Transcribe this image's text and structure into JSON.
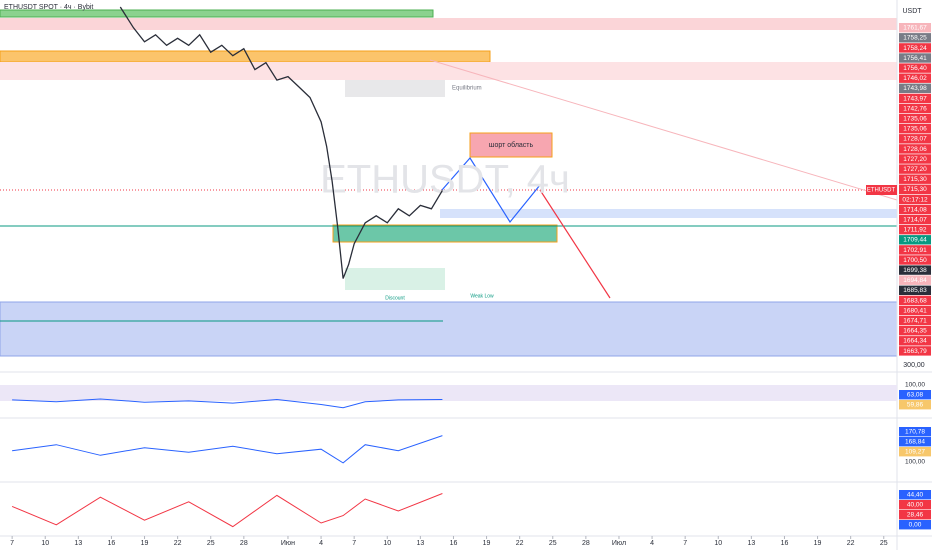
{
  "chart_data": {
    "type": "line",
    "title": "ETHUSDT SPOT · 4ч · Bybit",
    "watermark": "ETHUSDT, 4ч",
    "currency": "USDT",
    "color": "#2a2e39",
    "x": [
      9.8,
      11,
      12,
      13,
      14,
      15,
      16,
      17,
      18,
      19,
      20,
      21,
      22,
      23,
      24,
      25,
      26,
      27,
      28,
      28.5,
      29,
      29.5,
      30,
      30.5,
      31,
      32,
      33,
      34,
      35,
      36,
      37,
      38,
      39
    ],
    "values": [
      1768,
      1762,
      1758,
      1760,
      1757,
      1759,
      1757,
      1760,
      1755,
      1757,
      1754,
      1756,
      1750,
      1752,
      1747,
      1748,
      1745,
      1742,
      1735,
      1728,
      1718,
      1705,
      1690,
      1694,
      1700,
      1706,
      1708,
      1706,
      1710,
      1708,
      1711,
      1710,
      1715.3
    ],
    "xlim": [
      -1.1,
      80.2
    ],
    "ylim": [
      1666,
      1770
    ],
    "xticks": [
      {
        "value": 0,
        "label": "7"
      },
      {
        "value": 3,
        "label": "10"
      },
      {
        "value": 6,
        "label": "13"
      },
      {
        "value": 9,
        "label": "16"
      },
      {
        "value": 12,
        "label": "19"
      },
      {
        "value": 15,
        "label": "22"
      },
      {
        "value": 18,
        "label": "25"
      },
      {
        "value": 21,
        "label": "28"
      },
      {
        "value": 25,
        "label": "Июн"
      },
      {
        "value": 28,
        "label": "4"
      },
      {
        "value": 31,
        "label": "7"
      },
      {
        "value": 34,
        "label": "10"
      },
      {
        "value": 37,
        "label": "13"
      },
      {
        "value": 40,
        "label": "16"
      },
      {
        "value": 43,
        "label": "19"
      },
      {
        "value": 46,
        "label": "22"
      },
      {
        "value": 49,
        "label": "25"
      },
      {
        "value": 52,
        "label": "28"
      },
      {
        "value": 55,
        "label": "Июл"
      },
      {
        "value": 58,
        "label": "4"
      },
      {
        "value": 61,
        "label": "7"
      },
      {
        "value": 64,
        "label": "10"
      },
      {
        "value": 67,
        "label": "13"
      },
      {
        "value": 70,
        "label": "16"
      },
      {
        "value": 73,
        "label": "19"
      },
      {
        "value": 76,
        "label": "22"
      },
      {
        "value": 79,
        "label": "25"
      }
    ],
    "price_tags": [
      {
        "label": "1761,67",
        "color": "#f7b5bb"
      },
      {
        "label": "1758,25",
        "color": "#787b86"
      },
      {
        "label": "1758,24",
        "color": "#f23645"
      },
      {
        "label": "1756,41",
        "color": "#787b86"
      },
      {
        "label": "1756,40",
        "color": "#f23645"
      },
      {
        "label": "1746,02",
        "color": "#f23645"
      },
      {
        "label": "1743,98",
        "color": "#787b86"
      },
      {
        "label": "1743,97",
        "color": "#f23645"
      },
      {
        "label": "1742,76",
        "color": "#f23645"
      },
      {
        "label": "1735,06",
        "color": "#f23645"
      },
      {
        "label": "1735,06",
        "color": "#f23645"
      },
      {
        "label": "1728,07",
        "color": "#f23645"
      },
      {
        "label": "1728,06",
        "color": "#f23645"
      },
      {
        "label": "1727,20",
        "color": "#f23645"
      },
      {
        "label": "1727,20",
        "color": "#f23645"
      },
      {
        "label": "1715,30",
        "color": "#f23645"
      },
      {
        "label": "1715,30",
        "color": "#f23645"
      },
      {
        "label": "02:17:12",
        "color": "#f23645"
      },
      {
        "label": "1714,08",
        "color": "#f23645"
      },
      {
        "label": "1714,07",
        "color": "#f23645"
      },
      {
        "label": "1711,92",
        "color": "#f23645"
      },
      {
        "label": "1709,44",
        "color": "#089981"
      },
      {
        "label": "1702,91",
        "color": "#f23645"
      },
      {
        "label": "1700,50",
        "color": "#f23645"
      },
      {
        "label": "1699,38",
        "color": "#2a2e39"
      },
      {
        "label": "1694,84",
        "color": "#f7b5bb"
      },
      {
        "label": "1685,83",
        "color": "#2a2e39"
      },
      {
        "label": "1683,68",
        "color": "#f23645"
      },
      {
        "label": "1680,41",
        "color": "#f23645"
      },
      {
        "label": "1674,71",
        "color": "#f23645"
      },
      {
        "label": "1664,35",
        "color": "#f23645"
      },
      {
        "label": "1664,34",
        "color": "#f23645"
      },
      {
        "label": "1663,79",
        "color": "#f23645"
      }
    ],
    "symbol_tag": "ETHUSDT",
    "annotations": {
      "equilibrium": "Equilibrium",
      "short_zone": "шорт область",
      "discount": "Discount",
      "weak_low": "Weak Low"
    },
    "volume_label": "300,00",
    "panes": [
      {
        "ylim": [
          40,
          110
        ],
        "color": "#2962ff",
        "x": [
          0,
          4,
          8,
          12,
          16,
          20,
          24,
          28,
          30,
          32,
          35,
          39
        ],
        "values": [
          62,
          58,
          64,
          57,
          60,
          55,
          63,
          52,
          45,
          58,
          62,
          63
        ],
        "labels": [
          {
            "label": "100,00",
            "color": "#ffffff"
          },
          {
            "label": "63,08",
            "color": "#2962ff"
          },
          {
            "label": "59,86",
            "color": "#f7c76b"
          }
        ]
      },
      {
        "ylim": [
          150,
          185
        ],
        "color": "#2962ff",
        "x": [
          0,
          4,
          8,
          12,
          16,
          20,
          24,
          28,
          30,
          32,
          35,
          39
        ],
        "values": [
          168,
          172,
          165,
          170,
          167,
          171,
          166,
          169,
          160,
          172,
          168,
          178
        ],
        "labels": [
          {
            "label": "170,78",
            "color": "#2962ff"
          },
          {
            "label": "168,84",
            "color": "#2962ff"
          },
          {
            "label": "109,27",
            "color": "#f7c76b"
          },
          {
            "label": "100,00",
            "color": "#ffffff"
          }
        ]
      },
      {
        "ylim": [
          0,
          50
        ],
        "color": "#f23645",
        "x": [
          0,
          4,
          8,
          12,
          16,
          20,
          24,
          28,
          30,
          32,
          35,
          39
        ],
        "values": [
          30,
          10,
          40,
          15,
          35,
          8,
          42,
          12,
          20,
          38,
          25,
          44
        ],
        "labels": [
          {
            "label": "44,40",
            "color": "#2962ff"
          },
          {
            "label": "40,00",
            "color": "#f23645"
          },
          {
            "label": "28,46",
            "color": "#f23645"
          },
          {
            "label": "0,00",
            "color": "#2962ff"
          }
        ]
      }
    ]
  }
}
